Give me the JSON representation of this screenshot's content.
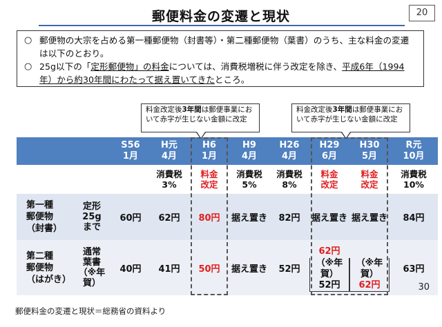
{
  "title": "郵便料金の変遷と現状",
  "page_box": "20",
  "bullets": [
    {
      "mark": "○",
      "text": "郵便物の大宗を占める第一種郵便物（封書等）・第二種郵便物（葉書）のうち、主な料金の変遷は以下のとおり。"
    },
    {
      "mark": "○",
      "pre": "25g以下の「",
      "u1": "定形郵便物」の料金",
      "mid": "については、消費税増税に伴う改定を除き、",
      "u2": "平成6年（1994年）から約30年間にわたって据え置いてきた",
      "post": "ところ。"
    }
  ],
  "callouts": [
    {
      "pre": "料金改定後",
      "bold": "3年間",
      "post": "は郵便事業において赤字が生じない金額に改定"
    },
    {
      "pre": "料金改定後",
      "bold": "3年間",
      "post": "は郵便事業において赤字が生じない金額に改定"
    }
  ],
  "table": {
    "dates": [
      [
        "S56",
        "1月"
      ],
      [
        "H元",
        "4月"
      ],
      [
        "H6",
        "1月"
      ],
      [
        "H9",
        "4月"
      ],
      [
        "H26",
        "4月"
      ],
      [
        "H29",
        "6月"
      ],
      [
        "H30",
        "5月"
      ],
      [
        "R元",
        "10月"
      ]
    ],
    "events": [
      {
        "l1": "",
        "l2": "",
        "red": false
      },
      {
        "l1": "消費税",
        "l2": "3%",
        "red": false
      },
      {
        "l1": "料金",
        "l2": "改定",
        "red": true
      },
      {
        "l1": "消費税",
        "l2": "5%",
        "red": false
      },
      {
        "l1": "消費税",
        "l2": "8%",
        "red": false
      },
      {
        "l1": "料金",
        "l2": "改定",
        "red": true
      },
      {
        "l1": "料金",
        "l2": "改定",
        "red": true
      },
      {
        "l1": "消費税",
        "l2": "10%",
        "red": false
      }
    ],
    "row1": {
      "label": [
        "第一種",
        "郵便物",
        "（封書）"
      ],
      "sub": [
        "定形",
        "25g",
        "まで"
      ],
      "values": [
        "60円",
        "62円",
        "80円",
        "据え置き",
        "82円",
        "据え置き",
        "据え置き",
        "84円"
      ]
    },
    "row2": {
      "label": [
        "第二種",
        "郵便物",
        "（はがき）"
      ],
      "sub": [
        "通常",
        "葉書",
        "（※年賀）"
      ],
      "values": [
        "40円",
        "41円",
        "50円",
        "据え置き",
        "52円",
        "62円",
        "",
        "63円"
      ],
      "nenga_h29": [
        "（※年賀）",
        "52円"
      ],
      "nenga_h30": [
        "（※年賀）",
        "62円"
      ]
    }
  },
  "page_number": "30",
  "source": "郵便料金の変遷と現状＝総務省の資料より",
  "colors": {
    "header_blue": "#4f80c0",
    "accent_red": "#e02020"
  }
}
